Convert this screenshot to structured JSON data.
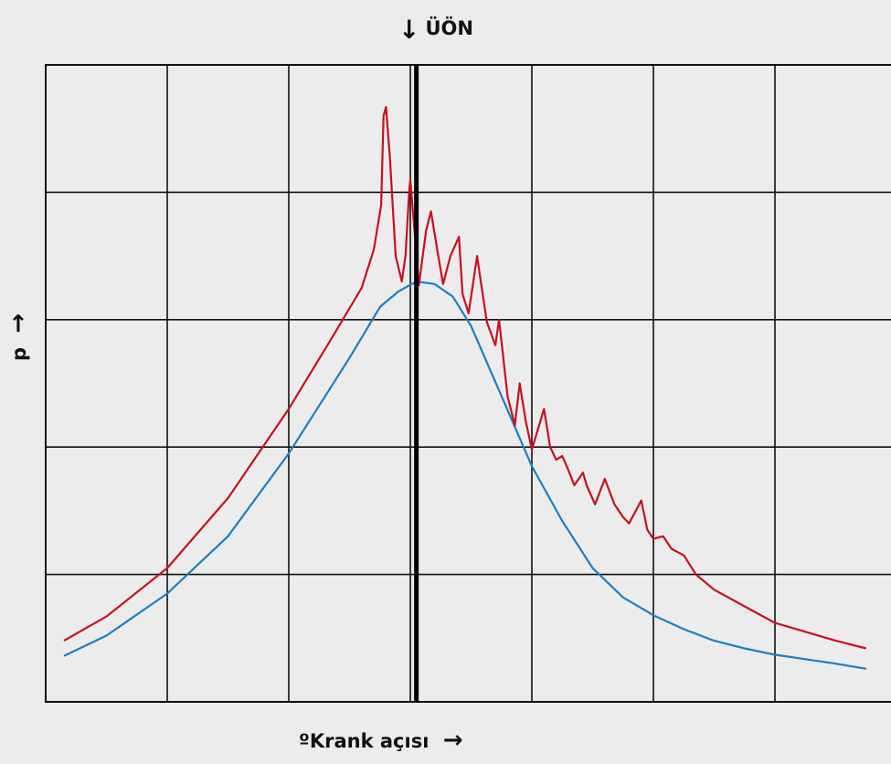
{
  "chart_data": {
    "type": "line",
    "title": "",
    "marker_label": "ÜÖN",
    "xlabel": "ºKrank açısı",
    "ylabel": "p",
    "grid": true,
    "xlim": [
      0,
      7
    ],
    "ylim": [
      0,
      5
    ],
    "x_ticks_count": 7,
    "y_ticks_count": 5,
    "marker_x": 3.05,
    "series": [
      {
        "color": "#1b7fc4",
        "points": [
          [
            0.15,
            0.36
          ],
          [
            0.5,
            0.52
          ],
          [
            1.0,
            0.85
          ],
          [
            1.5,
            1.3
          ],
          [
            2.0,
            1.95
          ],
          [
            2.5,
            2.7
          ],
          [
            2.75,
            3.1
          ],
          [
            2.9,
            3.22
          ],
          [
            3.05,
            3.3
          ],
          [
            3.2,
            3.28
          ],
          [
            3.35,
            3.18
          ],
          [
            3.5,
            2.95
          ],
          [
            3.75,
            2.4
          ],
          [
            4.0,
            1.85
          ],
          [
            4.25,
            1.42
          ],
          [
            4.5,
            1.05
          ],
          [
            4.75,
            0.82
          ],
          [
            5.0,
            0.68
          ],
          [
            5.25,
            0.57
          ],
          [
            5.5,
            0.48
          ],
          [
            5.75,
            0.42
          ],
          [
            6.0,
            0.37
          ],
          [
            6.5,
            0.3
          ],
          [
            6.75,
            0.26
          ]
        ]
      },
      {
        "color": "#c8101e",
        "points": [
          [
            0.15,
            0.48
          ],
          [
            0.5,
            0.67
          ],
          [
            1.0,
            1.05
          ],
          [
            1.5,
            1.6
          ],
          [
            2.0,
            2.3
          ],
          [
            2.35,
            2.85
          ],
          [
            2.6,
            3.25
          ],
          [
            2.7,
            3.55
          ],
          [
            2.76,
            3.9
          ],
          [
            2.78,
            4.6
          ],
          [
            2.8,
            4.67
          ],
          [
            2.83,
            4.3
          ],
          [
            2.88,
            3.5
          ],
          [
            2.93,
            3.3
          ],
          [
            2.96,
            3.5
          ],
          [
            2.99,
            4.0
          ],
          [
            3.0,
            4.1
          ],
          [
            3.03,
            3.75
          ],
          [
            3.07,
            3.27
          ],
          [
            3.13,
            3.7
          ],
          [
            3.17,
            3.85
          ],
          [
            3.23,
            3.5
          ],
          [
            3.27,
            3.28
          ],
          [
            3.33,
            3.5
          ],
          [
            3.4,
            3.65
          ],
          [
            3.43,
            3.2
          ],
          [
            3.48,
            3.05
          ],
          [
            3.55,
            3.5
          ],
          [
            3.58,
            3.3
          ],
          [
            3.63,
            2.98
          ],
          [
            3.7,
            2.8
          ],
          [
            3.73,
            3.0
          ],
          [
            3.8,
            2.4
          ],
          [
            3.86,
            2.17
          ],
          [
            3.9,
            2.5
          ],
          [
            3.95,
            2.2
          ],
          [
            4.0,
            1.98
          ],
          [
            4.1,
            2.3
          ],
          [
            4.15,
            2.0
          ],
          [
            4.2,
            1.9
          ],
          [
            4.25,
            1.93
          ],
          [
            4.3,
            1.82
          ],
          [
            4.35,
            1.7
          ],
          [
            4.42,
            1.8
          ],
          [
            4.45,
            1.7
          ],
          [
            4.52,
            1.55
          ],
          [
            4.6,
            1.75
          ],
          [
            4.68,
            1.55
          ],
          [
            4.75,
            1.45
          ],
          [
            4.8,
            1.4
          ],
          [
            4.9,
            1.58
          ],
          [
            4.95,
            1.35
          ],
          [
            5.0,
            1.28
          ],
          [
            5.08,
            1.3
          ],
          [
            5.15,
            1.2
          ],
          [
            5.25,
            1.15
          ],
          [
            5.35,
            1.0
          ],
          [
            5.5,
            0.88
          ],
          [
            5.75,
            0.75
          ],
          [
            6.0,
            0.62
          ],
          [
            6.5,
            0.48
          ],
          [
            6.75,
            0.42
          ]
        ]
      }
    ]
  }
}
